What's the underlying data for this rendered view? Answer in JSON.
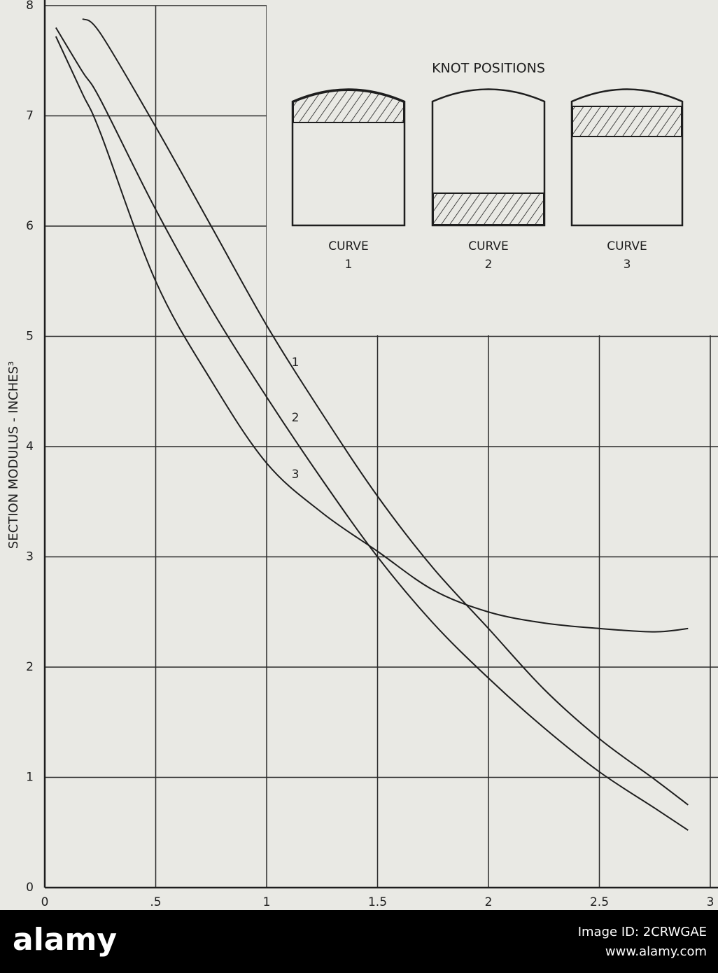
{
  "chart_data": {
    "type": "line",
    "ylabel": "SECTION MODULUS - INCHES³",
    "x": [
      0.05,
      0.17,
      0.25,
      0.5,
      0.75,
      1,
      1.25,
      1.5,
      1.75,
      2,
      2.25,
      2.5,
      2.75,
      2.9
    ],
    "series": [
      {
        "name": "1",
        "color": "#1e1e1e",
        "values": [
          null,
          7.88,
          7.75,
          6.9,
          6.0,
          5.1,
          4.3,
          3.55,
          2.9,
          2.35,
          1.8,
          1.35,
          0.98,
          0.75
        ]
      },
      {
        "name": "2",
        "color": "#1e1e1e",
        "values": [
          7.8,
          7.4,
          7.15,
          6.15,
          5.25,
          4.45,
          3.7,
          3.0,
          2.4,
          1.9,
          1.45,
          1.05,
          0.72,
          0.52
        ]
      },
      {
        "name": "3",
        "color": "#1e1e1e",
        "values": [
          7.72,
          7.2,
          6.85,
          5.5,
          4.6,
          3.85,
          3.4,
          3.05,
          2.7,
          2.5,
          2.4,
          2.35,
          2.32,
          2.35
        ]
      }
    ],
    "xlim": [
      0,
      3
    ],
    "ylim": [
      0,
      8
    ],
    "xticks": [
      0,
      {
        "value": 0.5,
        "label": ".5"
      },
      1,
      1.5,
      2,
      2.5,
      3
    ],
    "yticks": [
      0,
      1,
      2,
      3,
      4,
      5,
      6,
      7,
      8
    ],
    "grid": true,
    "inset": {
      "title": "KNOT POSITIONS",
      "captions": [
        "CURVE",
        "CURVE",
        "CURVE"
      ]
    }
  },
  "watermark": {
    "logo": "alamy",
    "image_id": "Image ID: 2CRWGAE",
    "url": "www.alamy.com"
  }
}
